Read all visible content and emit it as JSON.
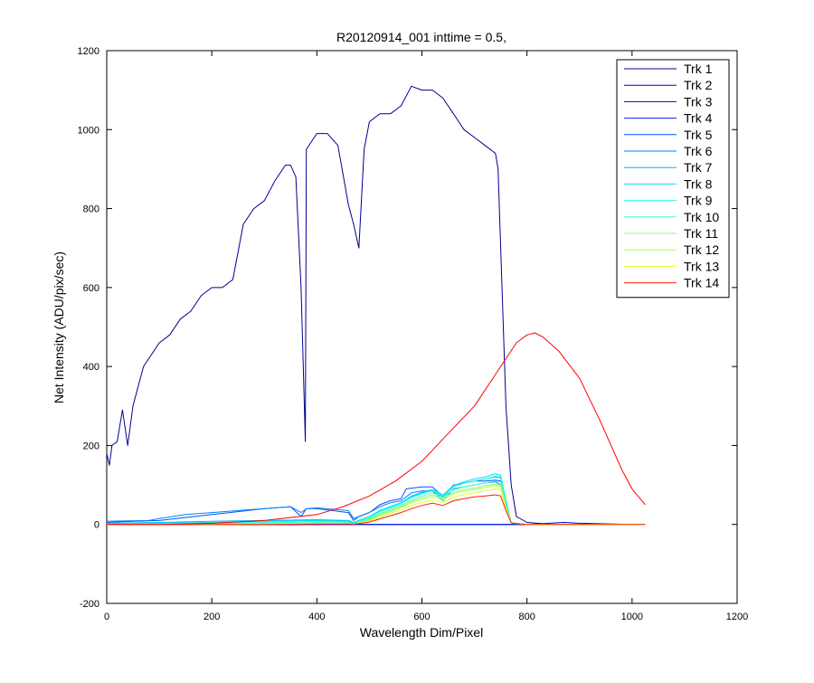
{
  "chart_data": {
    "type": "line",
    "title": "R20120914_001 inttime = 0.5,",
    "xlabel": "Wavelength Dim/Pixel",
    "ylabel": "Net Intensity (ADU/pix/sec)",
    "xlim": [
      0,
      1200
    ],
    "ylim": [
      -200,
      1200
    ],
    "xticks": [
      0,
      200,
      400,
      600,
      800,
      1000,
      1200
    ],
    "yticks": [
      -200,
      0,
      200,
      400,
      600,
      800,
      1000,
      1200
    ],
    "grid": false,
    "legend_position": "top-right",
    "series": [
      {
        "name": "Trk 1",
        "color": "#00008f",
        "x": [
          0,
          5,
          10,
          20,
          30,
          40,
          50,
          60,
          70,
          80,
          100,
          120,
          140,
          160,
          180,
          200,
          220,
          240,
          260,
          280,
          300,
          320,
          340,
          350,
          360,
          370,
          378,
          380,
          390,
          400,
          420,
          440,
          460,
          470,
          480,
          490,
          500,
          520,
          540,
          560,
          580,
          600,
          620,
          640,
          660,
          680,
          700,
          720,
          740,
          745,
          760,
          770,
          780,
          800,
          850,
          900,
          1000,
          1025
        ],
        "y": [
          180,
          150,
          200,
          210,
          290,
          200,
          300,
          350,
          400,
          420,
          460,
          480,
          520,
          540,
          580,
          600,
          600,
          620,
          760,
          800,
          820,
          870,
          910,
          910,
          880,
          600,
          210,
          950,
          970,
          990,
          990,
          960,
          810,
          760,
          700,
          950,
          1020,
          1040,
          1040,
          1060,
          1110,
          1100,
          1100,
          1080,
          1040,
          1000,
          980,
          960,
          940,
          900,
          300,
          100,
          20,
          5,
          0,
          0,
          0,
          0
        ]
      },
      {
        "name": "Trk 2",
        "color": "#0000bf",
        "x": [
          0,
          100,
          200,
          400,
          700,
          750,
          800,
          870,
          900,
          1000,
          1025
        ],
        "y": [
          0,
          0,
          0,
          0,
          0,
          0,
          0,
          5,
          3,
          0,
          0
        ]
      },
      {
        "name": "Trk 3",
        "color": "#0000ef",
        "x": [
          0,
          100,
          200,
          400,
          700,
          750,
          800,
          900,
          1000,
          1025
        ],
        "y": [
          0,
          0,
          0,
          0,
          0,
          0,
          0,
          0,
          0,
          0
        ]
      },
      {
        "name": "Trk 4",
        "color": "#0020ff",
        "x": [
          0,
          100,
          200,
          400,
          700,
          750,
          800,
          900,
          1000,
          1025
        ],
        "y": [
          0,
          0,
          0,
          0,
          0,
          0,
          0,
          0,
          0,
          0
        ]
      },
      {
        "name": "Trk 5",
        "color": "#0050ff",
        "x": [
          0,
          50,
          100,
          200,
          300,
          350,
          370,
          380,
          400,
          460,
          470,
          480,
          500,
          520,
          540,
          560,
          570,
          600,
          620,
          640,
          660,
          680,
          700,
          720,
          740,
          750,
          760,
          770,
          780,
          800,
          1000,
          1025
        ],
        "y": [
          5,
          8,
          10,
          25,
          40,
          45,
          20,
          40,
          40,
          30,
          10,
          20,
          30,
          50,
          60,
          65,
          90,
          95,
          95,
          70,
          100,
          105,
          110,
          110,
          112,
          110,
          50,
          5,
          2,
          0,
          0,
          0
        ]
      },
      {
        "name": "Trk 6",
        "color": "#0080ff",
        "x": [
          0,
          80,
          100,
          150,
          200,
          250,
          300,
          350,
          370,
          380,
          400,
          460,
          470,
          480,
          500,
          520,
          540,
          560,
          580,
          600,
          620,
          640,
          660,
          680,
          700,
          720,
          740,
          750,
          760,
          770,
          780,
          800,
          1000,
          1025
        ],
        "y": [
          8,
          10,
          15,
          25,
          30,
          35,
          40,
          45,
          30,
          40,
          42,
          35,
          15,
          20,
          30,
          45,
          55,
          60,
          80,
          85,
          85,
          60,
          90,
          95,
          100,
          105,
          108,
          100,
          50,
          5,
          2,
          0,
          0,
          0
        ]
      },
      {
        "name": "Trk 7",
        "color": "#00b0ff",
        "x": [
          0,
          100,
          200,
          300,
          400,
          460,
          470,
          480,
          500,
          520,
          540,
          560,
          580,
          600,
          620,
          640,
          660,
          680,
          700,
          720,
          740,
          750,
          760,
          770,
          780,
          800,
          1000,
          1025
        ],
        "y": [
          3,
          5,
          8,
          10,
          12,
          10,
          5,
          10,
          20,
          35,
          45,
          55,
          70,
          80,
          85,
          70,
          95,
          105,
          110,
          115,
          120,
          118,
          60,
          5,
          2,
          0,
          0,
          0
        ]
      },
      {
        "name": "Trk 8",
        "color": "#00e0ff",
        "x": [
          0,
          100,
          200,
          300,
          400,
          460,
          470,
          480,
          500,
          520,
          540,
          560,
          580,
          600,
          620,
          640,
          660,
          680,
          700,
          720,
          740,
          750,
          760,
          770,
          780,
          800,
          1000,
          1025
        ],
        "y": [
          2,
          3,
          5,
          8,
          10,
          8,
          4,
          10,
          20,
          35,
          45,
          55,
          72,
          82,
          88,
          75,
          98,
          108,
          115,
          120,
          128,
          125,
          60,
          5,
          2,
          0,
          0,
          0
        ]
      },
      {
        "name": "Trk 9",
        "color": "#20ffdf",
        "x": [
          0,
          100,
          200,
          300,
          400,
          460,
          470,
          480,
          500,
          520,
          540,
          560,
          580,
          600,
          620,
          640,
          660,
          680,
          700,
          720,
          740,
          750,
          760,
          770,
          780,
          800,
          1000,
          1025
        ],
        "y": [
          1,
          2,
          3,
          5,
          8,
          6,
          3,
          8,
          18,
          32,
          42,
          52,
          68,
          78,
          85,
          72,
          95,
          105,
          110,
          115,
          122,
          120,
          55,
          5,
          2,
          0,
          0,
          0
        ]
      },
      {
        "name": "Trk 10",
        "color": "#50ffaf",
        "x": [
          0,
          100,
          200,
          300,
          400,
          460,
          470,
          480,
          500,
          520,
          540,
          560,
          580,
          600,
          620,
          640,
          660,
          680,
          700,
          720,
          740,
          750,
          760,
          770,
          780,
          800,
          1000,
          1025
        ],
        "y": [
          0,
          1,
          2,
          3,
          5,
          4,
          2,
          6,
          15,
          28,
          38,
          48,
          62,
          72,
          80,
          68,
          88,
          95,
          100,
          105,
          110,
          108,
          50,
          5,
          2,
          0,
          0,
          0
        ]
      },
      {
        "name": "Trk 11",
        "color": "#80ff80",
        "x": [
          0,
          100,
          200,
          300,
          400,
          460,
          470,
          480,
          500,
          520,
          540,
          560,
          580,
          600,
          620,
          640,
          660,
          680,
          700,
          720,
          740,
          750,
          760,
          770,
          780,
          800,
          1000,
          1025
        ],
        "y": [
          0,
          0,
          1,
          2,
          3,
          3,
          2,
          5,
          12,
          25,
          35,
          45,
          58,
          68,
          75,
          65,
          82,
          88,
          92,
          98,
          102,
          100,
          45,
          5,
          2,
          0,
          0,
          0
        ]
      },
      {
        "name": "Trk 12",
        "color": "#afff50",
        "x": [
          0,
          100,
          200,
          300,
          400,
          460,
          470,
          480,
          500,
          520,
          540,
          560,
          580,
          600,
          620,
          640,
          660,
          680,
          700,
          720,
          740,
          750,
          760,
          770,
          780,
          800,
          1000,
          1025
        ],
        "y": [
          0,
          0,
          0,
          1,
          2,
          2,
          1,
          4,
          10,
          22,
          32,
          42,
          55,
          64,
          70,
          62,
          78,
          84,
          88,
          94,
          98,
          96,
          45,
          5,
          2,
          0,
          0,
          0
        ]
      },
      {
        "name": "Trk 13",
        "color": "#dfff20",
        "x": [
          0,
          100,
          200,
          300,
          400,
          460,
          470,
          480,
          500,
          520,
          540,
          560,
          580,
          600,
          620,
          640,
          660,
          680,
          700,
          720,
          740,
          750,
          760,
          770,
          780,
          800,
          1000,
          1025
        ],
        "y": [
          0,
          0,
          0,
          1,
          2,
          2,
          1,
          3,
          8,
          18,
          28,
          36,
          48,
          56,
          62,
          55,
          70,
          75,
          80,
          85,
          90,
          88,
          40,
          5,
          2,
          0,
          0,
          0
        ]
      },
      {
        "name": "Trk 14",
        "color": "#ff2000",
        "x": [
          0,
          100,
          200,
          300,
          400,
          460,
          470,
          480,
          500,
          520,
          540,
          560,
          580,
          600,
          620,
          640,
          660,
          680,
          700,
          720,
          740,
          750,
          760,
          770,
          780,
          800,
          1000,
          1025
        ],
        "y": [
          0,
          0,
          0,
          0,
          1,
          1,
          1,
          2,
          6,
          14,
          22,
          30,
          40,
          48,
          54,
          48,
          60,
          65,
          70,
          72,
          75,
          72,
          35,
          4,
          2,
          0,
          0,
          0
        ]
      },
      {
        "name": "",
        "color": "#ff0000",
        "x": [
          0,
          100,
          200,
          300,
          400,
          450,
          500,
          550,
          600,
          650,
          700,
          740,
          760,
          780,
          800,
          815,
          830,
          860,
          900,
          940,
          980,
          1000,
          1025
        ],
        "y": [
          0,
          0,
          3,
          10,
          25,
          45,
          72,
          110,
          160,
          230,
          300,
          380,
          420,
          460,
          480,
          485,
          475,
          440,
          370,
          260,
          140,
          90,
          50
        ]
      }
    ]
  }
}
